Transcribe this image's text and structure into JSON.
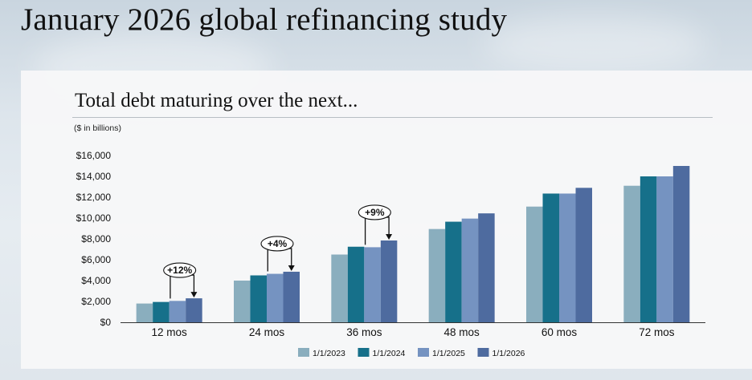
{
  "page": {
    "title": "January 2026 global refinancing study"
  },
  "chart_data": {
    "type": "bar",
    "title": "Total debt maturing over the next...",
    "subtitle": "($ in billions)",
    "xlabel": "",
    "ylabel": "",
    "categories": [
      "12 mos",
      "24 mos",
      "36 mos",
      "48 mos",
      "60 mos",
      "72 mos"
    ],
    "ylim": [
      0,
      16000
    ],
    "yticks": [
      "$0",
      "$2,000",
      "$4,000",
      "$6,000",
      "$8,000",
      "$10,000",
      "$12,000",
      "$14,000",
      "$16,000"
    ],
    "series": [
      {
        "name": "1/1/2023",
        "color": "#8aaebe",
        "values": [
          1800,
          4000,
          6500,
          8950,
          11100,
          13100
        ]
      },
      {
        "name": "1/1/2024",
        "color": "#16708a",
        "values": [
          1950,
          4500,
          7250,
          9650,
          12350,
          14000
        ]
      },
      {
        "name": "1/1/2025",
        "color": "#7593c1",
        "values": [
          2050,
          4650,
          7200,
          9950,
          12350,
          14000
        ]
      },
      {
        "name": "1/1/2026",
        "color": "#4e6b9f",
        "values": [
          2300,
          4850,
          7850,
          10450,
          12900,
          15000
        ]
      }
    ],
    "annotations": [
      {
        "category": "12 mos",
        "label": "+12%"
      },
      {
        "category": "24 mos",
        "label": "+4%"
      },
      {
        "category": "36 mos",
        "label": "+9%"
      }
    ],
    "legend_position": "bottom",
    "grid": false
  }
}
